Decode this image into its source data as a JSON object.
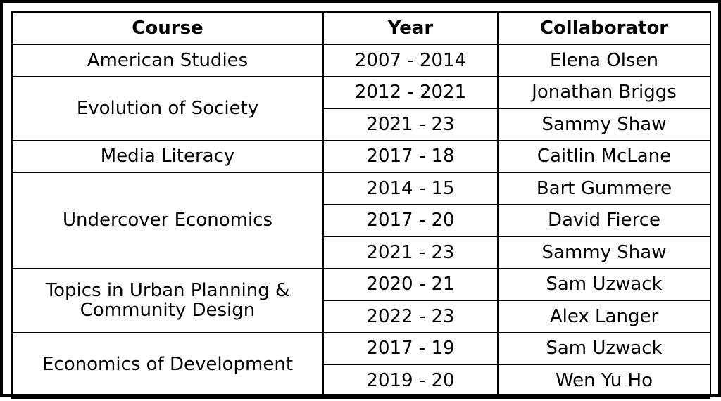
{
  "table": {
    "headers": [
      "Course",
      "Year",
      "Collaborator"
    ],
    "groups": [
      {
        "course": "American Studies",
        "rows": [
          {
            "year": "2007 - 2014",
            "collaborator": "Elena Olsen"
          }
        ]
      },
      {
        "course": "Evolution of Society",
        "rows": [
          {
            "year": "2012 - 2021",
            "collaborator": "Jonathan Briggs"
          },
          {
            "year": "2021 - 23",
            "collaborator": "Sammy Shaw"
          }
        ]
      },
      {
        "course": "Media Literacy",
        "rows": [
          {
            "year": "2017 - 18",
            "collaborator": "Caitlin McLane"
          }
        ]
      },
      {
        "course": "Undercover Economics",
        "rows": [
          {
            "year": "2014 - 15",
            "collaborator": "Bart Gummere"
          },
          {
            "year": "2017 - 20",
            "collaborator": "David Fierce"
          },
          {
            "year": "2021 - 23",
            "collaborator": "Sammy Shaw"
          }
        ]
      },
      {
        "course": "Topics in Urban Planning & Community Design",
        "rows": [
          {
            "year": "2020 - 21",
            "collaborator": "Sam Uzwack"
          },
          {
            "year": "2022 - 23",
            "collaborator": "Alex Langer"
          }
        ]
      },
      {
        "course": "Economics of Development",
        "rows": [
          {
            "year": "2017 - 19",
            "collaborator": "Sam Uzwack"
          },
          {
            "year": "2019 - 20",
            "collaborator": "Wen Yu Ho"
          }
        ]
      }
    ]
  }
}
